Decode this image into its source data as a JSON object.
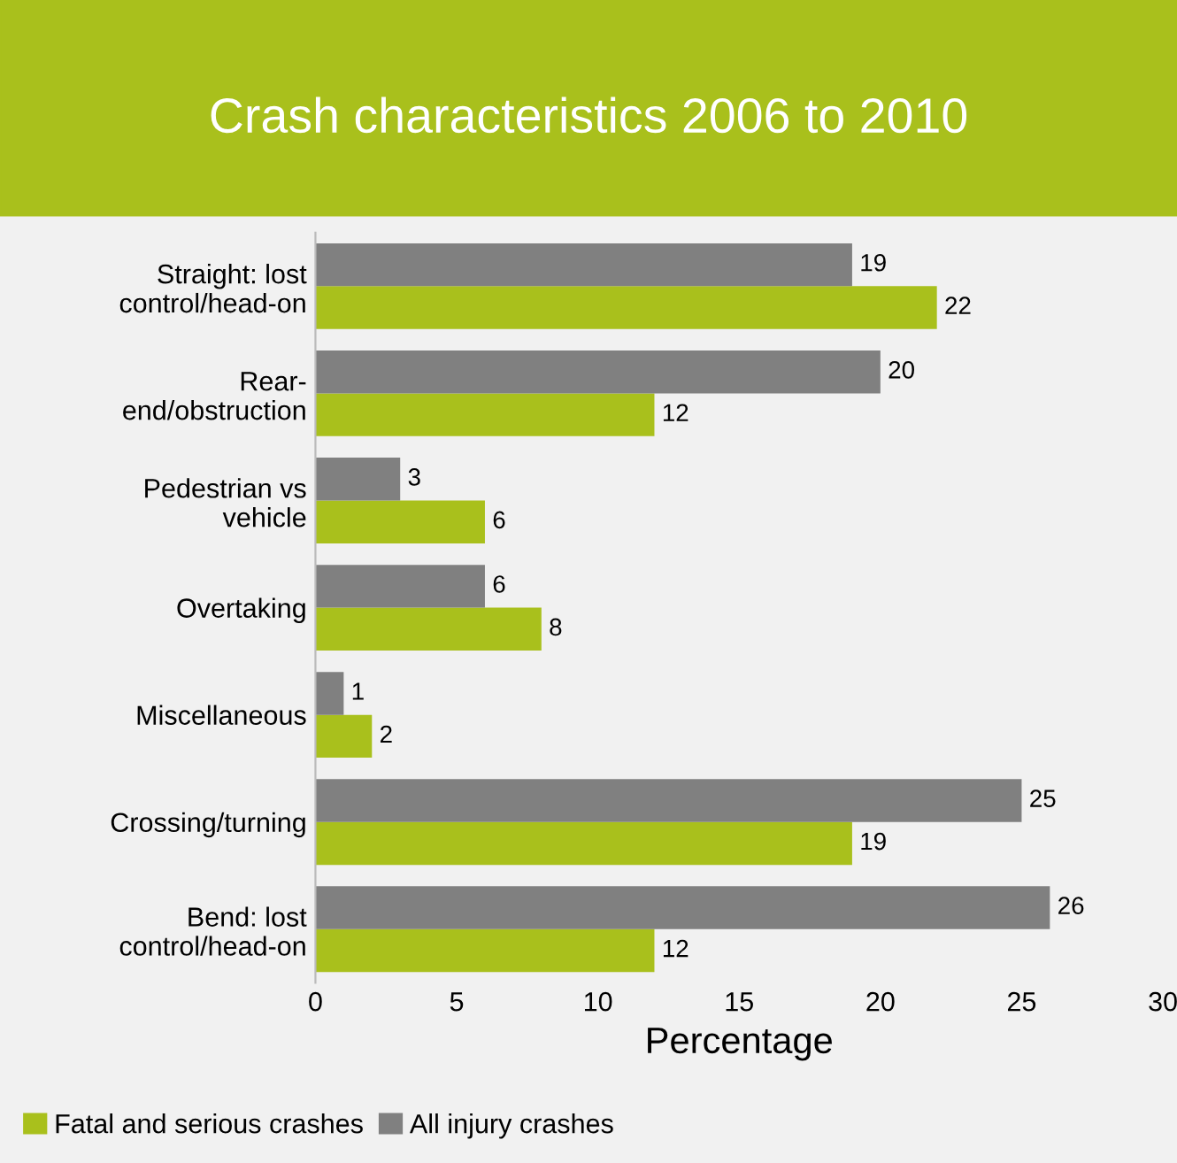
{
  "chart_data": {
    "type": "bar",
    "orientation": "horizontal",
    "title": "Crash characteristics 2006 to 2010",
    "xlabel": "Percentage",
    "categories": [
      "Straight: lost\ncontrol/head-on",
      "Rear-\nend/obstruction",
      "Pedestrian vs\nvehicle",
      "Overtaking",
      "Miscellaneous",
      "Crossing/turning",
      "Bend: lost\ncontrol/head-on"
    ],
    "series": [
      {
        "name": "Fatal and serious crashes",
        "color": "#a9c01c",
        "values": [
          22,
          12,
          6,
          8,
          2,
          19,
          12
        ]
      },
      {
        "name": "All injury crashes",
        "color": "#808080",
        "values": [
          19,
          20,
          3,
          6,
          1,
          25,
          26
        ]
      }
    ],
    "xlim": [
      0,
      30
    ],
    "xticks": [
      0,
      5,
      10,
      15,
      20,
      25,
      30
    ],
    "data_labels": true,
    "grid": false,
    "legend": "bottom left"
  }
}
